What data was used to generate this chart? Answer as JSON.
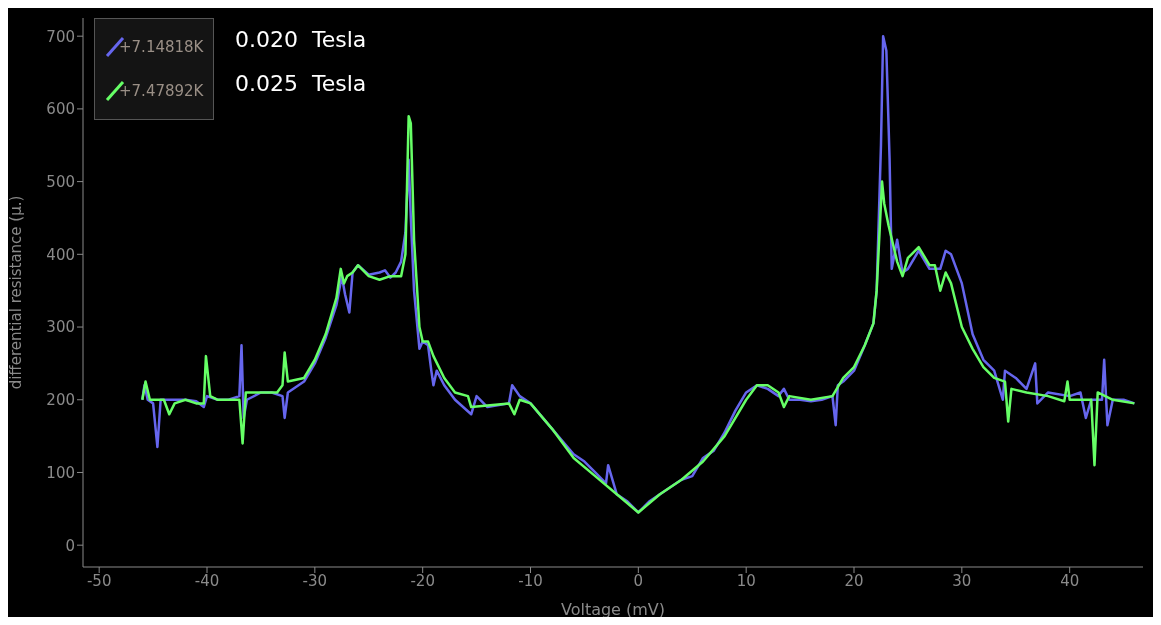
{
  "chart_data": {
    "type": "line",
    "xlabel": "Voltage (mV)",
    "ylabel": "differential resistance (μ.)",
    "xlim": [
      -51.5,
      46.8
    ],
    "ylim": [
      -30,
      725
    ],
    "xticks": [
      -50,
      -40,
      -30,
      -20,
      -10,
      0,
      10,
      20,
      30,
      40
    ],
    "yticks": [
      0,
      100,
      200,
      300,
      400,
      500,
      600,
      700
    ],
    "grid": false,
    "legend": "top left",
    "marker": "none",
    "line_style": "solid",
    "annotations": [
      "0.020  Tesla",
      "0.025  Tesla"
    ],
    "series": [
      {
        "name": "+7.14818K",
        "color": "#6666ee",
        "x": [
          -46,
          -45.8,
          -45.5,
          -45,
          -44.6,
          -44.3,
          -43.5,
          -42,
          -41,
          -40.3,
          -40,
          -39,
          -38,
          -37,
          -36.8,
          -36.6,
          -36.3,
          -35,
          -34,
          -33,
          -32.8,
          -32.5,
          -31,
          -30,
          -29,
          -28,
          -27.5,
          -27.2,
          -26.8,
          -26.5,
          -26,
          -25,
          -24,
          -23.5,
          -23,
          -22.5,
          -22,
          -21.6,
          -21.3,
          -21.1,
          -20.8,
          -20.3,
          -20,
          -19.5,
          -19.2,
          -19,
          -18.7,
          -18,
          -17,
          -15.5,
          -15,
          -14,
          -12,
          -11.7,
          -11,
          -10,
          -8,
          -6,
          -5,
          -4,
          -3,
          -2.8,
          -2,
          -1,
          0,
          1,
          2,
          3,
          4,
          5,
          6,
          7,
          8,
          9,
          10,
          11,
          12,
          13,
          13.5,
          14,
          15,
          16,
          17,
          18,
          18.3,
          18.5,
          19,
          20,
          21,
          21.8,
          22.1,
          22.5,
          22.7,
          23,
          23.3,
          23.5,
          24,
          24.5,
          25,
          26,
          27,
          28,
          28.5,
          29,
          30,
          31,
          32,
          33,
          33.8,
          34,
          35,
          36,
          36.8,
          37,
          38,
          40,
          41,
          41.5,
          42,
          43,
          43.2,
          43.5,
          44,
          45,
          46
        ],
        "values": [
          200,
          220,
          200,
          195,
          135,
          200,
          200,
          200,
          198,
          190,
          205,
          200,
          200,
          205,
          275,
          175,
          200,
          210,
          210,
          205,
          175,
          210,
          225,
          250,
          285,
          330,
          370,
          345,
          320,
          375,
          385,
          372,
          375,
          378,
          368,
          375,
          390,
          430,
          530,
          450,
          350,
          270,
          280,
          275,
          240,
          220,
          240,
          220,
          200,
          180,
          205,
          190,
          195,
          220,
          205,
          195,
          160,
          125,
          115,
          100,
          85,
          110,
          70,
          60,
          45,
          60,
          70,
          80,
          90,
          95,
          120,
          130,
          155,
          185,
          210,
          220,
          215,
          205,
          215,
          200,
          200,
          198,
          200,
          205,
          165,
          220,
          225,
          240,
          275,
          305,
          350,
          550,
          700,
          680,
          530,
          380,
          420,
          375,
          380,
          405,
          380,
          380,
          405,
          400,
          360,
          290,
          255,
          240,
          200,
          240,
          230,
          215,
          250,
          195,
          210,
          205,
          210,
          175,
          200,
          200,
          255,
          165,
          200,
          200,
          195
        ]
      },
      {
        "name": "+7.47892K",
        "color": "#66ff66",
        "x": [
          -46,
          -45.7,
          -45.3,
          -44,
          -43.5,
          -43,
          -42,
          -41,
          -40.3,
          -40.1,
          -39.7,
          -39,
          -37,
          -36.7,
          -36.4,
          -35,
          -33.5,
          -33,
          -32.8,
          -32.5,
          -31,
          -30,
          -29,
          -28,
          -27.6,
          -27.3,
          -27,
          -26.5,
          -26,
          -25,
          -24,
          -23,
          -22,
          -21.6,
          -21.3,
          -21.1,
          -20.8,
          -20.3,
          -20,
          -19.5,
          -19,
          -18,
          -17,
          -15.8,
          -15.5,
          -14,
          -12,
          -11.5,
          -11,
          -10,
          -8,
          -6,
          -4,
          -2,
          0,
          2,
          4,
          6,
          8,
          10,
          11,
          12,
          13,
          13.5,
          14,
          16,
          18,
          19,
          20,
          21,
          21.8,
          22.1,
          22.6,
          22.8,
          23.2,
          24,
          24.5,
          25,
          26,
          27,
          27.5,
          28,
          28.5,
          29,
          30,
          31,
          32,
          33,
          34,
          34.3,
          34.6,
          36,
          38,
          39.5,
          39.8,
          40,
          41,
          42,
          42.3,
          42.6,
          44,
          46
        ],
        "values": [
          200,
          225,
          200,
          200,
          180,
          195,
          200,
          195,
          195,
          260,
          205,
          200,
          200,
          140,
          210,
          210,
          210,
          220,
          265,
          225,
          230,
          255,
          290,
          340,
          380,
          360,
          370,
          375,
          385,
          370,
          365,
          370,
          370,
          400,
          590,
          580,
          420,
          300,
          280,
          280,
          260,
          230,
          210,
          205,
          190,
          192,
          195,
          180,
          200,
          195,
          160,
          120,
          95,
          70,
          45,
          70,
          90,
          115,
          150,
          200,
          220,
          220,
          210,
          190,
          205,
          200,
          205,
          230,
          245,
          275,
          305,
          350,
          500,
          470,
          440,
          390,
          370,
          395,
          410,
          385,
          385,
          350,
          375,
          360,
          300,
          270,
          245,
          230,
          225,
          170,
          215,
          210,
          205,
          198,
          225,
          200,
          200,
          200,
          110,
          210,
          200,
          195
        ]
      }
    ]
  }
}
